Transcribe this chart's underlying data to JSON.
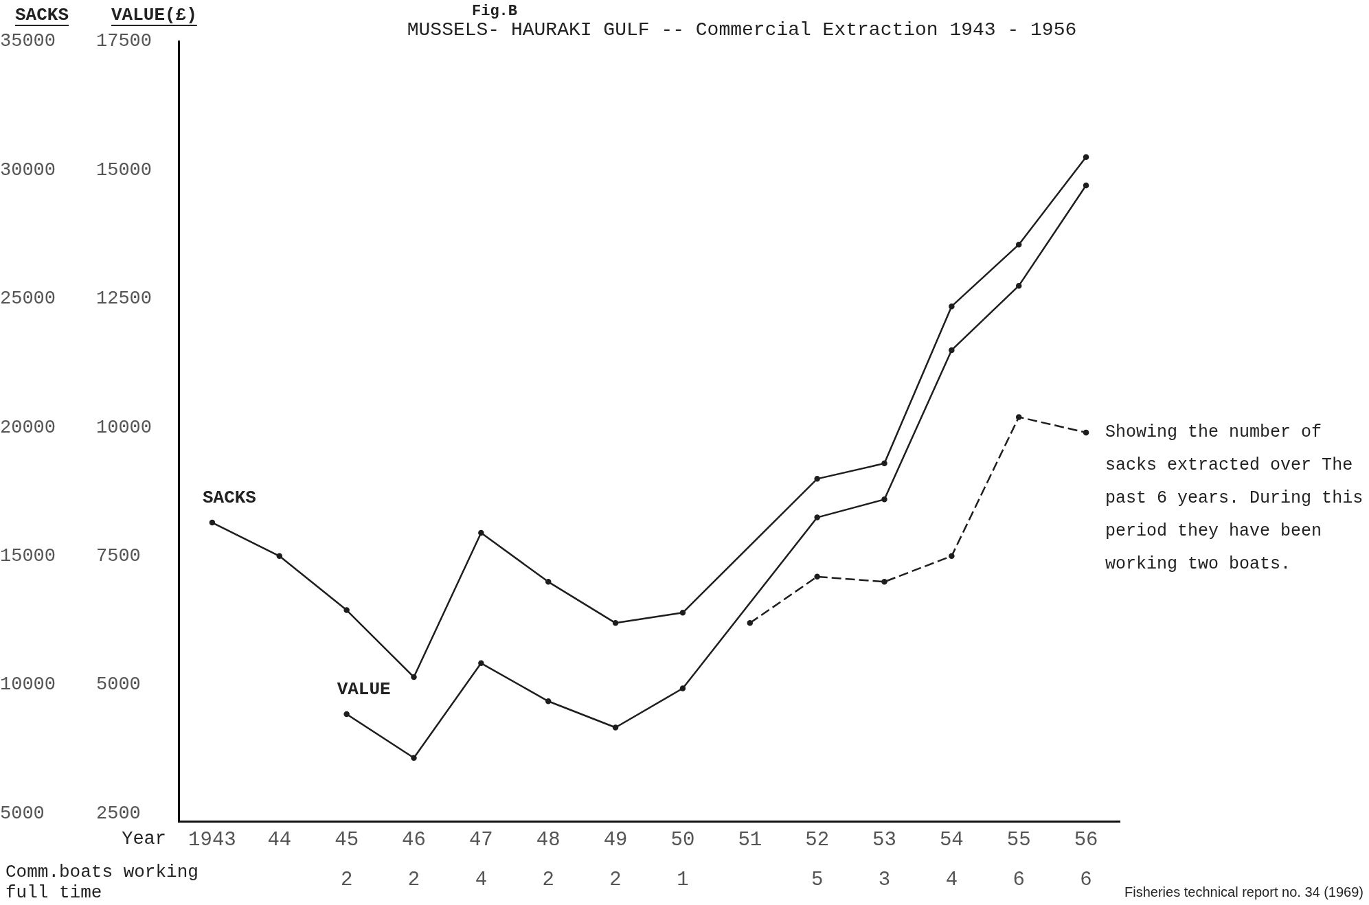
{
  "chart_data": {
    "type": "line",
    "subtitle": "Fig.B",
    "title": "MUSSELS- HAURAKI GULF -- Commercial Extraction 1943 - 1956",
    "xlabel": "Year",
    "ylabel": "SACKS",
    "y2label": "VALUE(£)",
    "categories": [
      "1943",
      "44",
      "45\n2",
      "46\n2",
      "47\n4",
      "48\n2",
      "49\n2",
      "50\n1",
      "51",
      "52\n5",
      "53\n3",
      "54\n4",
      "55\n6",
      "56\n6"
    ],
    "series": [
      {
        "name": "SACKS",
        "color": "#1e1e1e",
        "axis": "y",
        "values": [
          16300,
          15000,
          12900,
          10300,
          15900,
          14000,
          12400,
          12800,
          null,
          18000,
          18600,
          24700,
          27100,
          30500
        ]
      },
      {
        "name": "VALUE",
        "color": "#1e1e1e",
        "axis": "y2",
        "values": [
          null,
          null,
          4430,
          3580,
          5420,
          4680,
          4170,
          4930,
          null,
          8250,
          8600,
          11500,
          12750,
          14700
        ]
      },
      {
        "color": "#1e1e1e",
        "axis": "y",
        "line_style": "dashed",
        "values": [
          null,
          null,
          null,
          null,
          null,
          null,
          null,
          null,
          12400,
          14200,
          14000,
          15000,
          20400,
          19800
        ]
      }
    ],
    "ylim": [
      4700,
      35000
    ],
    "yticks": [
      5000,
      10000,
      15000,
      20000,
      25000,
      30000,
      35000
    ],
    "y2lim": [
      2350,
      17500
    ],
    "y2ticks": [
      2500,
      5000,
      7500,
      10000,
      12500,
      15000,
      17500
    ],
    "grid": false,
    "legend": false,
    "marker": "circle",
    "line_style": "solid",
    "annotations": [
      "Comm.boats working full time",
      {
        "text": "Showing the number of sacks extracted over The past 6 years. During this period they have been working two boats.",
        "x": "56\n6",
        "y": 19800
      },
      "Fisheries technical report no. 34 (1969)"
    ]
  }
}
